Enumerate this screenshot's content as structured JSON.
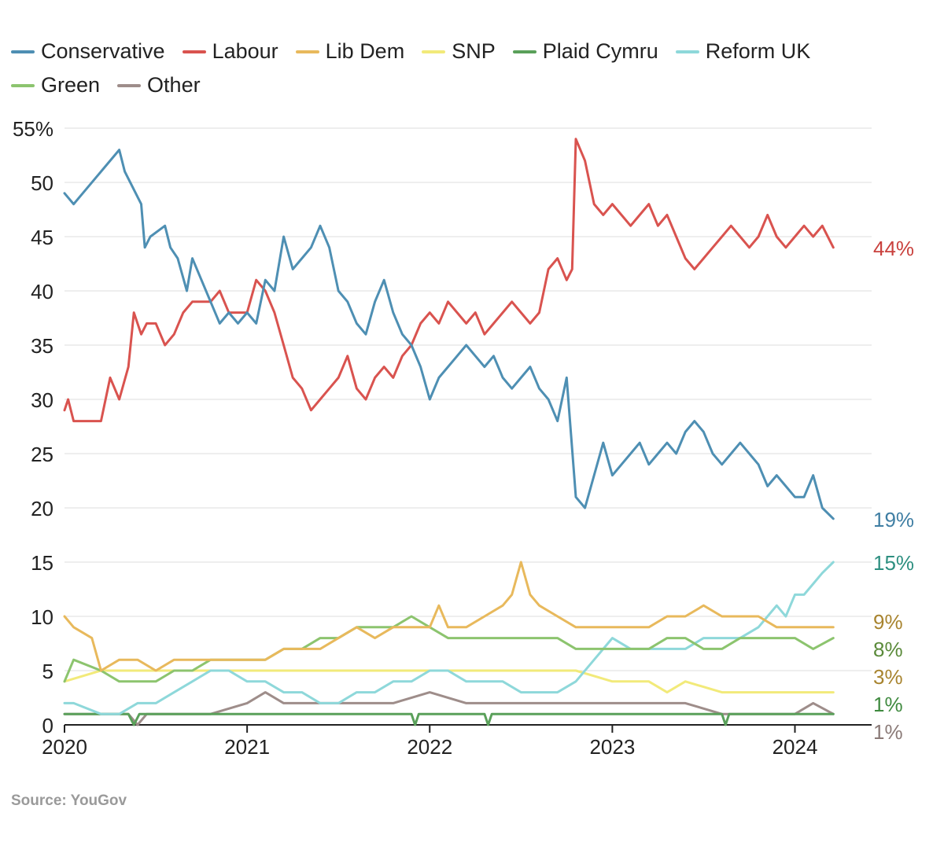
{
  "source": "Source: YouGov",
  "chart_data": {
    "type": "line",
    "title": "",
    "xlabel": "",
    "ylabel": "",
    "ylim": [
      0,
      55
    ],
    "xlim": [
      2020.0,
      2024.42
    ],
    "grid": true,
    "legend_position": "top",
    "y_ticks": [
      {
        "value": 55,
        "label": "55%"
      },
      {
        "value": 50,
        "label": "50"
      },
      {
        "value": 45,
        "label": "45"
      },
      {
        "value": 40,
        "label": "40"
      },
      {
        "value": 35,
        "label": "35"
      },
      {
        "value": 30,
        "label": "30"
      },
      {
        "value": 25,
        "label": "25"
      },
      {
        "value": 20,
        "label": "20"
      },
      {
        "value": 15,
        "label": "15"
      },
      {
        "value": 10,
        "label": "10"
      },
      {
        "value": 5,
        "label": "5"
      },
      {
        "value": 0,
        "label": "0"
      }
    ],
    "x_ticks": [
      {
        "value": 2020,
        "label": "2020"
      },
      {
        "value": 2021,
        "label": "2021"
      },
      {
        "value": 2022,
        "label": "2022"
      },
      {
        "value": 2023,
        "label": "2023"
      },
      {
        "value": 2024,
        "label": "2024"
      }
    ],
    "series": [
      {
        "name": "Conservative",
        "color": "#4e8fb3",
        "end_label": "19%",
        "x": [
          2020.0,
          2020.05,
          2020.1,
          2020.3,
          2020.33,
          2020.42,
          2020.44,
          2020.47,
          2020.55,
          2020.58,
          2020.62,
          2020.67,
          2020.7,
          2020.75,
          2020.8,
          2020.85,
          2020.9,
          2020.95,
          2021.0,
          2021.05,
          2021.1,
          2021.15,
          2021.2,
          2021.25,
          2021.3,
          2021.35,
          2021.4,
          2021.45,
          2021.5,
          2021.55,
          2021.6,
          2021.65,
          2021.7,
          2021.75,
          2021.8,
          2021.85,
          2021.9,
          2021.95,
          2022.0,
          2022.05,
          2022.1,
          2022.15,
          2022.2,
          2022.25,
          2022.3,
          2022.35,
          2022.4,
          2022.45,
          2022.5,
          2022.55,
          2022.6,
          2022.65,
          2022.7,
          2022.75,
          2022.8,
          2022.85,
          2022.9,
          2022.95,
          2023.0,
          2023.05,
          2023.1,
          2023.15,
          2023.2,
          2023.25,
          2023.3,
          2023.35,
          2023.4,
          2023.45,
          2023.5,
          2023.55,
          2023.6,
          2023.65,
          2023.7,
          2023.75,
          2023.8,
          2023.85,
          2023.9,
          2023.95,
          2024.0,
          2024.05,
          2024.1,
          2024.15,
          2024.21
        ],
        "values": [
          49,
          48,
          49,
          53,
          51,
          48,
          44,
          45,
          46,
          44,
          43,
          40,
          43,
          41,
          39,
          37,
          38,
          37,
          38,
          37,
          41,
          40,
          45,
          42,
          43,
          44,
          46,
          44,
          40,
          39,
          37,
          36,
          39,
          41,
          38,
          36,
          35,
          33,
          30,
          32,
          33,
          34,
          35,
          34,
          33,
          34,
          32,
          31,
          32,
          33,
          31,
          30,
          28,
          32,
          21,
          20,
          23,
          26,
          23,
          24,
          25,
          26,
          24,
          25,
          26,
          25,
          27,
          28,
          27,
          25,
          24,
          25,
          26,
          25,
          24,
          22,
          23,
          22,
          21,
          21,
          23,
          20,
          19
        ]
      },
      {
        "name": "Labour",
        "color": "#d9534f",
        "end_label": "44%",
        "x": [
          2020.0,
          2020.02,
          2020.05,
          2020.2,
          2020.25,
          2020.3,
          2020.35,
          2020.38,
          2020.42,
          2020.45,
          2020.5,
          2020.55,
          2020.6,
          2020.65,
          2020.7,
          2020.75,
          2020.8,
          2020.85,
          2020.9,
          2020.95,
          2021.0,
          2021.05,
          2021.1,
          2021.15,
          2021.2,
          2021.25,
          2021.3,
          2021.35,
          2021.4,
          2021.45,
          2021.5,
          2021.55,
          2021.6,
          2021.65,
          2021.7,
          2021.75,
          2021.8,
          2021.85,
          2021.9,
          2021.95,
          2022.0,
          2022.05,
          2022.1,
          2022.15,
          2022.2,
          2022.25,
          2022.3,
          2022.35,
          2022.4,
          2022.45,
          2022.5,
          2022.55,
          2022.6,
          2022.65,
          2022.7,
          2022.75,
          2022.78,
          2022.8,
          2022.85,
          2022.9,
          2022.95,
          2023.0,
          2023.05,
          2023.1,
          2023.15,
          2023.2,
          2023.25,
          2023.3,
          2023.35,
          2023.4,
          2023.45,
          2023.5,
          2023.55,
          2023.6,
          2023.65,
          2023.7,
          2023.75,
          2023.8,
          2023.85,
          2023.9,
          2023.95,
          2024.0,
          2024.05,
          2024.1,
          2024.15,
          2024.21
        ],
        "values": [
          29,
          30,
          28,
          28,
          32,
          30,
          33,
          38,
          36,
          37,
          37,
          35,
          36,
          38,
          39,
          39,
          39,
          40,
          38,
          38,
          38,
          41,
          40,
          38,
          35,
          32,
          31,
          29,
          30,
          31,
          32,
          34,
          31,
          30,
          32,
          33,
          32,
          34,
          35,
          37,
          38,
          37,
          39,
          38,
          37,
          38,
          36,
          37,
          38,
          39,
          38,
          37,
          38,
          42,
          43,
          41,
          42,
          54,
          52,
          48,
          47,
          48,
          47,
          46,
          47,
          48,
          46,
          47,
          45,
          43,
          42,
          43,
          44,
          45,
          46,
          45,
          44,
          45,
          47,
          45,
          44,
          45,
          46,
          45,
          46,
          44
        ]
      },
      {
        "name": "Lib Dem",
        "color": "#e8b95c",
        "end_label": "9%",
        "x": [
          2020.0,
          2020.05,
          2020.15,
          2020.2,
          2020.3,
          2020.4,
          2020.5,
          2020.6,
          2020.7,
          2020.8,
          2020.9,
          2021.0,
          2021.1,
          2021.2,
          2021.3,
          2021.4,
          2021.5,
          2021.6,
          2021.7,
          2021.8,
          2021.9,
          2022.0,
          2022.05,
          2022.1,
          2022.2,
          2022.3,
          2022.4,
          2022.45,
          2022.5,
          2022.55,
          2022.6,
          2022.7,
          2022.8,
          2022.9,
          2023.0,
          2023.1,
          2023.2,
          2023.3,
          2023.4,
          2023.5,
          2023.6,
          2023.7,
          2023.8,
          2023.9,
          2024.0,
          2024.1,
          2024.21
        ],
        "values": [
          10,
          9,
          8,
          5,
          6,
          6,
          5,
          6,
          6,
          6,
          6,
          6,
          6,
          7,
          7,
          7,
          8,
          9,
          8,
          9,
          9,
          9,
          11,
          9,
          9,
          10,
          11,
          12,
          15,
          12,
          11,
          10,
          9,
          9,
          9,
          9,
          9,
          10,
          10,
          11,
          10,
          10,
          10,
          9,
          9,
          9,
          9
        ]
      },
      {
        "name": "SNP",
        "color": "#f2ea7a",
        "end_label": "3%",
        "x": [
          2020.0,
          2020.2,
          2020.4,
          2020.6,
          2020.8,
          2021.0,
          2021.2,
          2021.4,
          2021.6,
          2021.8,
          2022.0,
          2022.2,
          2022.4,
          2022.6,
          2022.8,
          2023.0,
          2023.2,
          2023.3,
          2023.4,
          2023.6,
          2023.8,
          2024.0,
          2024.21
        ],
        "values": [
          4,
          5,
          5,
          5,
          5,
          5,
          5,
          5,
          5,
          5,
          5,
          5,
          5,
          5,
          5,
          4,
          4,
          3,
          4,
          3,
          3,
          3,
          3
        ]
      },
      {
        "name": "Plaid Cymru",
        "color": "#5aa05a",
        "end_label": "1%",
        "x": [
          2020.0,
          2020.35,
          2020.38,
          2020.41,
          2021.9,
          2021.92,
          2021.94,
          2022.3,
          2022.32,
          2022.34,
          2023.6,
          2023.62,
          2023.64,
          2024.21
        ],
        "values": [
          1,
          1,
          0,
          1,
          1,
          0,
          1,
          1,
          0,
          1,
          1,
          0,
          1,
          1
        ]
      },
      {
        "name": "Reform UK",
        "color": "#8ed8da",
        "end_label": "15%",
        "x": [
          2020.0,
          2020.05,
          2020.2,
          2020.3,
          2020.4,
          2020.5,
          2020.6,
          2020.7,
          2020.8,
          2020.9,
          2021.0,
          2021.1,
          2021.2,
          2021.3,
          2021.4,
          2021.5,
          2021.6,
          2021.7,
          2021.8,
          2021.9,
          2022.0,
          2022.1,
          2022.2,
          2022.3,
          2022.4,
          2022.5,
          2022.6,
          2022.7,
          2022.8,
          2022.9,
          2023.0,
          2023.1,
          2023.2,
          2023.3,
          2023.4,
          2023.5,
          2023.6,
          2023.7,
          2023.8,
          2023.85,
          2023.9,
          2023.95,
          2024.0,
          2024.05,
          2024.1,
          2024.15,
          2024.21
        ],
        "values": [
          2,
          2,
          1,
          1,
          2,
          2,
          3,
          4,
          5,
          5,
          4,
          4,
          3,
          3,
          2,
          2,
          3,
          3,
          4,
          4,
          5,
          5,
          4,
          4,
          4,
          3,
          3,
          3,
          4,
          6,
          8,
          7,
          7,
          7,
          7,
          8,
          8,
          8,
          9,
          10,
          11,
          10,
          12,
          12,
          13,
          14,
          15
        ]
      },
      {
        "name": "Green",
        "color": "#8cc46e",
        "end_label": "8%",
        "x": [
          2020.0,
          2020.05,
          2020.2,
          2020.3,
          2020.4,
          2020.5,
          2020.6,
          2020.7,
          2020.8,
          2020.9,
          2021.0,
          2021.1,
          2021.2,
          2021.3,
          2021.4,
          2021.5,
          2021.6,
          2021.7,
          2021.8,
          2021.9,
          2022.0,
          2022.1,
          2022.2,
          2022.3,
          2022.4,
          2022.5,
          2022.6,
          2022.7,
          2022.8,
          2022.9,
          2023.0,
          2023.1,
          2023.2,
          2023.3,
          2023.4,
          2023.5,
          2023.6,
          2023.7,
          2023.8,
          2023.9,
          2024.0,
          2024.1,
          2024.21
        ],
        "values": [
          4,
          6,
          5,
          4,
          4,
          4,
          5,
          5,
          6,
          6,
          6,
          6,
          7,
          7,
          8,
          8,
          9,
          9,
          9,
          10,
          9,
          8,
          8,
          8,
          8,
          8,
          8,
          8,
          7,
          7,
          7,
          7,
          7,
          8,
          8,
          7,
          7,
          8,
          8,
          8,
          8,
          7,
          8
        ]
      },
      {
        "name": "Other",
        "color": "#9e8d8a",
        "end_label": "1%",
        "x": [
          2020.0,
          2020.35,
          2020.4,
          2020.45,
          2020.6,
          2020.8,
          2021.0,
          2021.1,
          2021.2,
          2021.4,
          2021.6,
          2021.8,
          2022.0,
          2022.2,
          2022.4,
          2022.6,
          2022.8,
          2023.0,
          2023.2,
          2023.4,
          2023.6,
          2023.8,
          2024.0,
          2024.1,
          2024.21
        ],
        "values": [
          1,
          1,
          0,
          1,
          1,
          1,
          2,
          3,
          2,
          2,
          2,
          2,
          3,
          2,
          2,
          2,
          2,
          2,
          2,
          2,
          1,
          1,
          1,
          2,
          1
        ]
      }
    ]
  }
}
